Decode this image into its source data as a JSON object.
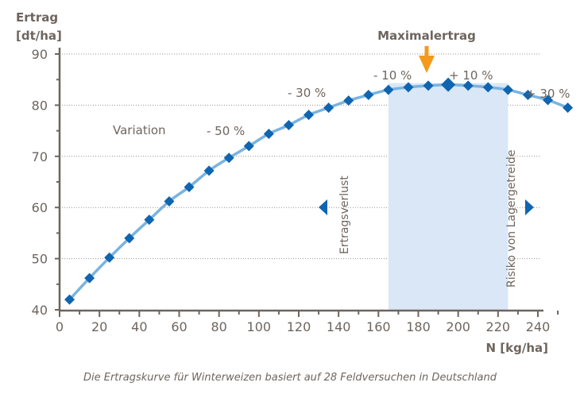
{
  "chart_data": {
    "type": "line",
    "ylabel": "Ertrag\n[dt/ha]",
    "ylabel_lines": [
      "Ertrag",
      "[dt/ha]"
    ],
    "xlabel": "N [kg/ha]",
    "xlim": [
      0,
      255
    ],
    "ylim": [
      40,
      90
    ],
    "xticks": [
      0,
      20,
      40,
      60,
      80,
      100,
      120,
      140,
      160,
      180,
      200,
      220,
      240
    ],
    "yticks": [
      40,
      50,
      60,
      70,
      80,
      90
    ],
    "grid": "horizontal dotted",
    "x": [
      5,
      15,
      25,
      35,
      45,
      55,
      65,
      75,
      85,
      95,
      105,
      115,
      125,
      135,
      145,
      155,
      165,
      175,
      185,
      195,
      205,
      215,
      225,
      235,
      245,
      255
    ],
    "y": [
      42,
      46.2,
      50.2,
      54,
      57.6,
      61.2,
      64,
      67.2,
      69.7,
      72,
      74.4,
      76.1,
      78.1,
      79.5,
      80.9,
      82,
      83,
      83.5,
      83.8,
      84,
      83.8,
      83.5,
      83,
      82,
      81,
      79.5
    ],
    "max_point": {
      "x": 195,
      "y": 84
    },
    "highlight_range": [
      165,
      225
    ],
    "annotations": [
      {
        "text": "Maximalertrag",
        "x": 195
      },
      {
        "text": "Variation"
      },
      {
        "text": "- 50 %",
        "x": 95
      },
      {
        "text": "- 30 %",
        "x": 135
      },
      {
        "text": "- 10 %",
        "x": 175
      },
      {
        "text": "+ 10 %",
        "x": 215
      },
      {
        "text": "+ 30 %",
        "x": 255
      },
      {
        "text": "Ertragsverlust"
      },
      {
        "text": "Risiko von Lagergetreide"
      }
    ],
    "colors": {
      "line": "#7ab3e0",
      "marker": "#0f65b0",
      "highlight": "#d9e7f7",
      "arrow_max": "#f39a1c",
      "text": "#6e655e",
      "axis": "#6e655e"
    }
  },
  "caption": "Die Ertragskurve für Winterweizen basiert auf 28 Feldversuchen in Deutschland"
}
